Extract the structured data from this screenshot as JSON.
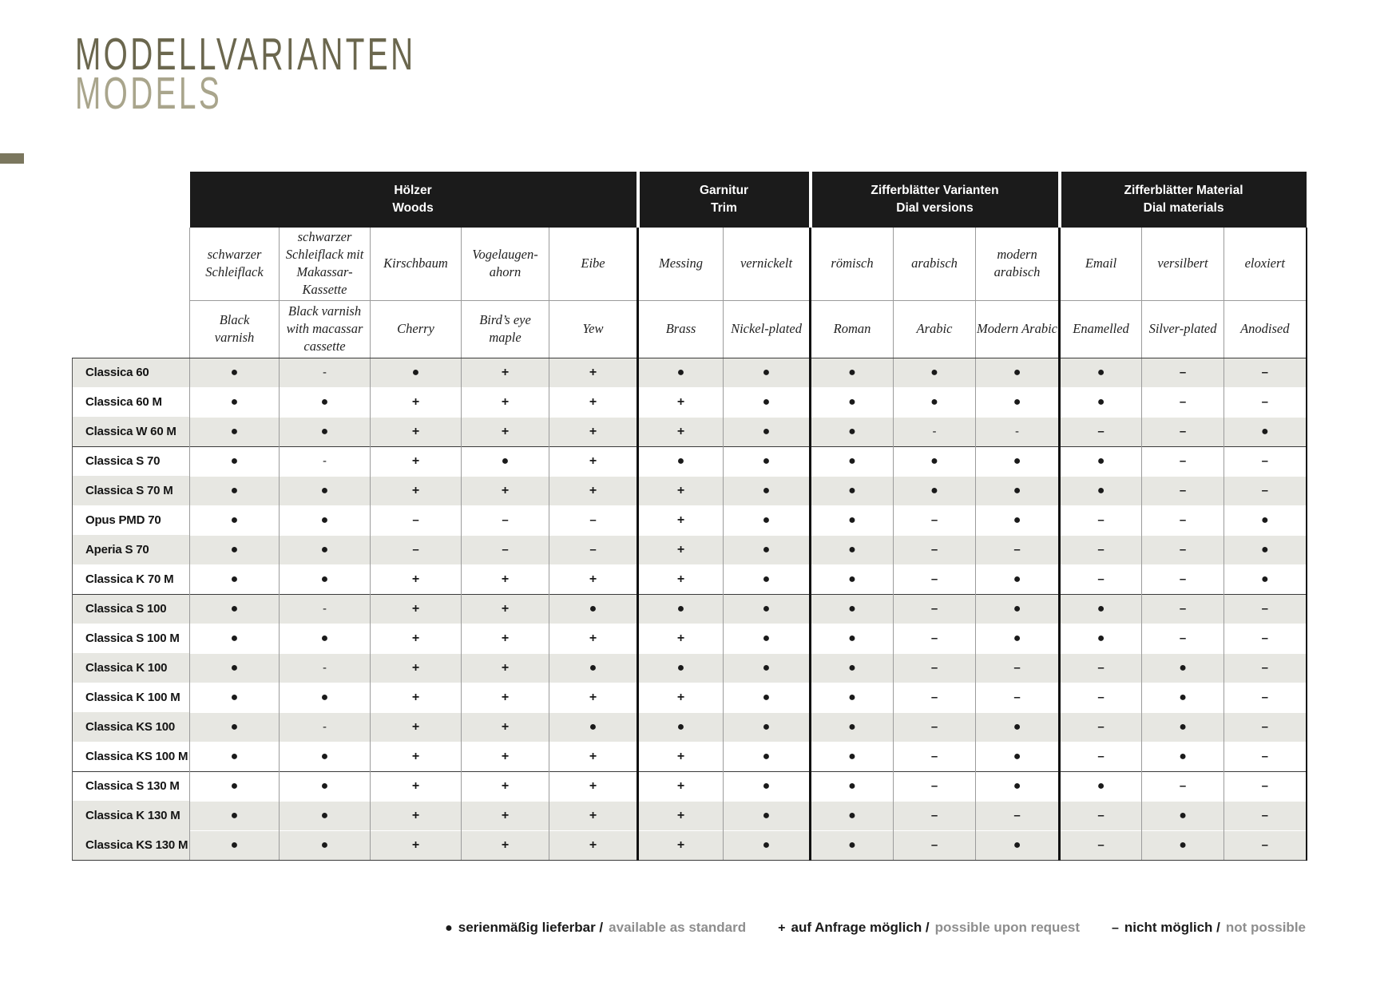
{
  "page": {
    "title_de": "MODELLVARIANTEN",
    "title_en": "MODELS"
  },
  "colors": {
    "title_de": "#6b674e",
    "title_en": "#a9a58c",
    "accent_rect": "#7b775e",
    "header_bar": "#1b1b1b",
    "row_shade": "#e7e7e2",
    "legend_en_gray": "#8e8e8e"
  },
  "table": {
    "symbols": {
      "dot": "●",
      "plus": "+",
      "minus": "–",
      "hyphen": "-"
    },
    "groups": [
      {
        "de": "Hölzer",
        "en": "Woods",
        "cols": 5
      },
      {
        "de": "Garnitur",
        "en": "Trim",
        "cols": 2
      },
      {
        "de": "Zifferblätter Varianten",
        "en": "Dial versions",
        "cols": 3
      },
      {
        "de": "Zifferblätter Material",
        "en": "Dial materials",
        "cols": 3
      }
    ],
    "columns": [
      {
        "de": "schwarzer\nSchleiflack",
        "en": "Black\nvarnish"
      },
      {
        "de": "schwarzer\nSchleiflack mit\nMakassar-\nKassette",
        "en": "Black varnish\nwith macassar\ncassette"
      },
      {
        "de": "Kirschbaum",
        "en": "Cherry"
      },
      {
        "de": "Vogelaugen-\nahorn",
        "en": "Bird’s eye\nmaple"
      },
      {
        "de": "Eibe",
        "en": "Yew"
      },
      {
        "de": "Messing",
        "en": "Brass"
      },
      {
        "de": "vernickelt",
        "en": "Nickel-plated"
      },
      {
        "de": "römisch",
        "en": "Roman"
      },
      {
        "de": "arabisch",
        "en": "Arabic"
      },
      {
        "de": "modern\narabisch",
        "en": "Modern Arabic"
      },
      {
        "de": "Email",
        "en": "Enamelled"
      },
      {
        "de": "versilbert",
        "en": "Silver-plated"
      },
      {
        "de": "eloxiert",
        "en": "Anodised"
      }
    ],
    "rows": [
      {
        "model": "Classica 60",
        "shaded": true,
        "group_start": false,
        "values": [
          "dot",
          "hyphen",
          "dot",
          "plus",
          "plus",
          "dot",
          "dot",
          "dot",
          "dot",
          "dot",
          "dot",
          "minus",
          "minus"
        ]
      },
      {
        "model": "Classica 60 M",
        "shaded": false,
        "group_start": false,
        "values": [
          "dot",
          "dot",
          "plus",
          "plus",
          "plus",
          "plus",
          "dot",
          "dot",
          "dot",
          "dot",
          "dot",
          "minus",
          "minus"
        ]
      },
      {
        "model": "Classica W 60 M",
        "shaded": true,
        "group_start": false,
        "values": [
          "dot",
          "dot",
          "plus",
          "plus",
          "plus",
          "plus",
          "dot",
          "dot",
          "hyphen",
          "hyphen",
          "minus",
          "minus",
          "dot"
        ]
      },
      {
        "model": "Classica S 70",
        "shaded": false,
        "group_start": true,
        "values": [
          "dot",
          "hyphen",
          "plus",
          "dot",
          "plus",
          "dot",
          "dot",
          "dot",
          "dot",
          "dot",
          "dot",
          "minus",
          "minus"
        ]
      },
      {
        "model": "Classica S 70 M",
        "shaded": true,
        "group_start": false,
        "values": [
          "dot",
          "dot",
          "plus",
          "plus",
          "plus",
          "plus",
          "dot",
          "dot",
          "dot",
          "dot",
          "dot",
          "minus",
          "minus"
        ]
      },
      {
        "model": "Opus PMD 70",
        "shaded": false,
        "group_start": false,
        "values": [
          "dot",
          "dot",
          "minus",
          "minus",
          "minus",
          "plus",
          "dot",
          "dot",
          "minus",
          "dot",
          "minus",
          "minus",
          "dot"
        ]
      },
      {
        "model": "Aperia S 70",
        "shaded": true,
        "group_start": false,
        "values": [
          "dot",
          "dot",
          "minus",
          "minus",
          "minus",
          "plus",
          "dot",
          "dot",
          "minus",
          "minus",
          "minus",
          "minus",
          "dot"
        ]
      },
      {
        "model": "Classica K 70 M",
        "shaded": false,
        "group_start": false,
        "values": [
          "dot",
          "dot",
          "plus",
          "plus",
          "plus",
          "plus",
          "dot",
          "dot",
          "minus",
          "dot",
          "minus",
          "minus",
          "dot"
        ]
      },
      {
        "model": "Classica S 100",
        "shaded": true,
        "group_start": true,
        "values": [
          "dot",
          "hyphen",
          "plus",
          "plus",
          "dot",
          "dot",
          "dot",
          "dot",
          "minus",
          "dot",
          "dot",
          "minus",
          "minus"
        ]
      },
      {
        "model": "Classica S 100 M",
        "shaded": false,
        "group_start": false,
        "values": [
          "dot",
          "dot",
          "plus",
          "plus",
          "plus",
          "plus",
          "dot",
          "dot",
          "minus",
          "dot",
          "dot",
          "minus",
          "minus"
        ]
      },
      {
        "model": "Classica K 100",
        "shaded": true,
        "group_start": false,
        "values": [
          "dot",
          "hyphen",
          "plus",
          "plus",
          "dot",
          "dot",
          "dot",
          "dot",
          "minus",
          "minus",
          "minus",
          "dot",
          "minus"
        ]
      },
      {
        "model": "Classica K 100 M",
        "shaded": false,
        "group_start": false,
        "values": [
          "dot",
          "dot",
          "plus",
          "plus",
          "plus",
          "plus",
          "dot",
          "dot",
          "minus",
          "minus",
          "minus",
          "dot",
          "minus"
        ]
      },
      {
        "model": "Classica KS 100",
        "shaded": true,
        "group_start": false,
        "values": [
          "dot",
          "hyphen",
          "plus",
          "plus",
          "dot",
          "dot",
          "dot",
          "dot",
          "minus",
          "dot",
          "minus",
          "dot",
          "minus"
        ]
      },
      {
        "model": "Classica KS 100 M",
        "shaded": false,
        "group_start": false,
        "values": [
          "dot",
          "dot",
          "plus",
          "plus",
          "plus",
          "plus",
          "dot",
          "dot",
          "minus",
          "dot",
          "minus",
          "dot",
          "minus"
        ]
      },
      {
        "model": "Classica S 130 M",
        "shaded": false,
        "group_start": true,
        "values": [
          "dot",
          "dot",
          "plus",
          "plus",
          "plus",
          "plus",
          "dot",
          "dot",
          "minus",
          "dot",
          "dot",
          "minus",
          "minus"
        ]
      },
      {
        "model": "Classica K 130 M",
        "shaded": true,
        "group_start": false,
        "values": [
          "dot",
          "dot",
          "plus",
          "plus",
          "plus",
          "plus",
          "dot",
          "dot",
          "minus",
          "minus",
          "minus",
          "dot",
          "minus"
        ]
      },
      {
        "model": "Classica KS 130 M",
        "shaded": true,
        "group_start": false,
        "values": [
          "dot",
          "dot",
          "plus",
          "plus",
          "plus",
          "plus",
          "dot",
          "dot",
          "minus",
          "dot",
          "minus",
          "dot",
          "minus"
        ]
      }
    ]
  },
  "legend": {
    "items": [
      {
        "symbol": "●",
        "de": "serienmäßig lieferbar /",
        "en": "available as standard"
      },
      {
        "symbol": "+",
        "de": "auf Anfrage möglich /",
        "en": "possible upon request"
      },
      {
        "symbol": "–",
        "de": "nicht möglich /",
        "en": "not possible"
      }
    ]
  }
}
